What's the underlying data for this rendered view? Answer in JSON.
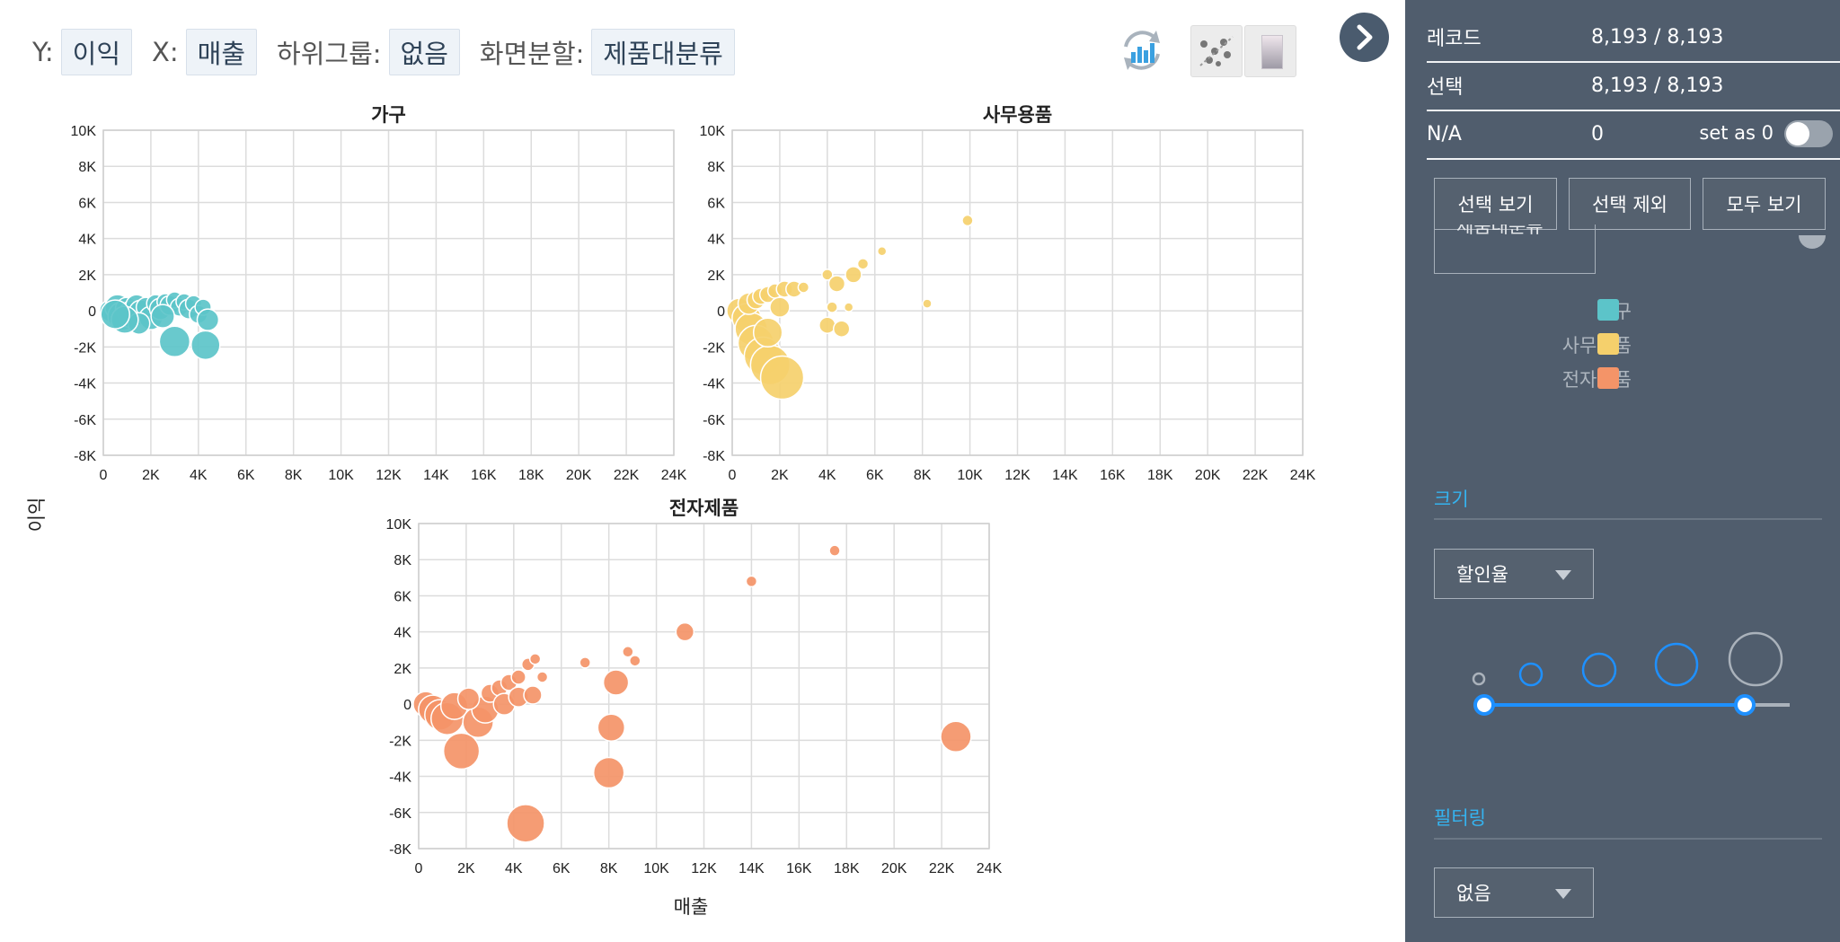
{
  "header": {
    "y_label": "Y:",
    "y_value": "이익",
    "x_label": "X:",
    "x_value": "매출",
    "subgroup_label": "하위그룹:",
    "subgroup_value": "없음",
    "split_label": "화면분할:",
    "split_value": "제품대분류"
  },
  "sidebar": {
    "records_label": "레코드",
    "records_value": "8,193 / 8,193",
    "selected_label": "선택",
    "selected_value": "8,193 / 8,193",
    "na_label": "N/A",
    "na_value": "0",
    "set_as_0_label": "set as 0",
    "buttons": {
      "show_selected": "선택 보기",
      "exclude_selected": "선택 제외",
      "show_all": "모두 보기"
    },
    "partial_dropdown_text": "제품대분류",
    "legend": [
      {
        "label": "가구",
        "color": "#5cc4c9"
      },
      {
        "label": "사무용품",
        "color": "#f5d06c"
      },
      {
        "label": "전자제품",
        "color": "#f49468"
      }
    ],
    "size_section_title": "크기",
    "size_dropdown_value": "할인율",
    "filter_section_title": "필터링",
    "filter_dropdown_value": "없음"
  },
  "chart_data": [
    {
      "type": "scatter",
      "title": "가구",
      "color": "#5cc4c9",
      "xlim": [
        0,
        24000
      ],
      "ylim": [
        -8000,
        10000
      ],
      "points": [
        [
          300,
          0,
          12
        ],
        [
          600,
          200,
          14
        ],
        [
          800,
          -300,
          16
        ],
        [
          1000,
          100,
          13
        ],
        [
          1200,
          -200,
          15
        ],
        [
          1400,
          300,
          12
        ],
        [
          1600,
          -100,
          14
        ],
        [
          1800,
          200,
          11
        ],
        [
          2000,
          -400,
          13
        ],
        [
          2200,
          400,
          10
        ],
        [
          2400,
          100,
          12
        ],
        [
          2600,
          500,
          9
        ],
        [
          2800,
          300,
          11
        ],
        [
          3000,
          600,
          9
        ],
        [
          3200,
          200,
          10
        ],
        [
          3400,
          500,
          9
        ],
        [
          3600,
          100,
          11
        ],
        [
          3800,
          400,
          9
        ],
        [
          4000,
          -200,
          10
        ],
        [
          4200,
          200,
          9
        ],
        [
          4400,
          -500,
          12
        ],
        [
          3000,
          -1700,
          17
        ],
        [
          4300,
          -1900,
          16
        ],
        [
          1500,
          -700,
          12
        ],
        [
          2500,
          -300,
          13
        ],
        [
          900,
          -500,
          15
        ],
        [
          500,
          -200,
          16
        ]
      ]
    },
    {
      "type": "scatter",
      "title": "사무용품",
      "color": "#f5d06c",
      "xlim": [
        0,
        24000
      ],
      "ylim": [
        -8000,
        10000
      ],
      "points": [
        [
          300,
          0,
          14
        ],
        [
          600,
          -400,
          16
        ],
        [
          800,
          -1000,
          18
        ],
        [
          1000,
          -1800,
          20
        ],
        [
          1300,
          -2500,
          21
        ],
        [
          1600,
          -3000,
          22
        ],
        [
          2100,
          -3700,
          24
        ],
        [
          700,
          400,
          12
        ],
        [
          1000,
          600,
          10
        ],
        [
          1200,
          800,
          9
        ],
        [
          1500,
          900,
          9
        ],
        [
          1800,
          1100,
          8
        ],
        [
          2200,
          1200,
          9
        ],
        [
          2600,
          1200,
          9
        ],
        [
          2000,
          200,
          11
        ],
        [
          3000,
          1300,
          6
        ],
        [
          4000,
          2000,
          6
        ],
        [
          4400,
          1500,
          9
        ],
        [
          5100,
          2000,
          9
        ],
        [
          5500,
          2600,
          6
        ],
        [
          6300,
          3300,
          5
        ],
        [
          4200,
          200,
          6
        ],
        [
          4900,
          200,
          5
        ],
        [
          4000,
          -800,
          9
        ],
        [
          4600,
          -1000,
          9
        ],
        [
          8200,
          400,
          5
        ],
        [
          9900,
          5000,
          6
        ],
        [
          1500,
          -1200,
          16
        ]
      ]
    },
    {
      "type": "scatter",
      "title": "전자제품",
      "color": "#f49468",
      "xlim": [
        0,
        24000
      ],
      "ylim": [
        -8000,
        10000
      ],
      "points": [
        [
          300,
          0,
          14
        ],
        [
          600,
          -300,
          16
        ],
        [
          900,
          -600,
          17
        ],
        [
          1200,
          -800,
          18
        ],
        [
          1800,
          -2600,
          20
        ],
        [
          2500,
          -1000,
          17
        ],
        [
          2800,
          -300,
          15
        ],
        [
          3000,
          600,
          10
        ],
        [
          3400,
          900,
          9
        ],
        [
          3800,
          1200,
          9
        ],
        [
          4200,
          1500,
          8
        ],
        [
          4600,
          2200,
          7
        ],
        [
          4900,
          2500,
          6
        ],
        [
          5200,
          1500,
          6
        ],
        [
          3600,
          0,
          12
        ],
        [
          4200,
          400,
          11
        ],
        [
          4800,
          500,
          10
        ],
        [
          4500,
          -6600,
          21
        ],
        [
          7000,
          2300,
          6
        ],
        [
          8300,
          1200,
          14
        ],
        [
          8800,
          2900,
          6
        ],
        [
          9100,
          2400,
          6
        ],
        [
          8100,
          -1300,
          15
        ],
        [
          8000,
          -3800,
          17
        ],
        [
          11200,
          4000,
          10
        ],
        [
          14000,
          6800,
          6
        ],
        [
          17500,
          8500,
          6
        ],
        [
          22600,
          -1800,
          17
        ],
        [
          1500,
          -100,
          15
        ],
        [
          2100,
          300,
          12
        ]
      ]
    }
  ],
  "axis": {
    "y_title": "이익",
    "x_title": "매출",
    "y_ticks": [
      "10K",
      "8K",
      "6K",
      "4K",
      "2K",
      "0",
      "-2K",
      "-4K",
      "-6K",
      "-8K"
    ],
    "x_ticks": [
      "0",
      "2K",
      "4K",
      "6K",
      "8K",
      "10K",
      "12K",
      "14K",
      "16K",
      "18K",
      "20K",
      "22K",
      "24K"
    ]
  }
}
